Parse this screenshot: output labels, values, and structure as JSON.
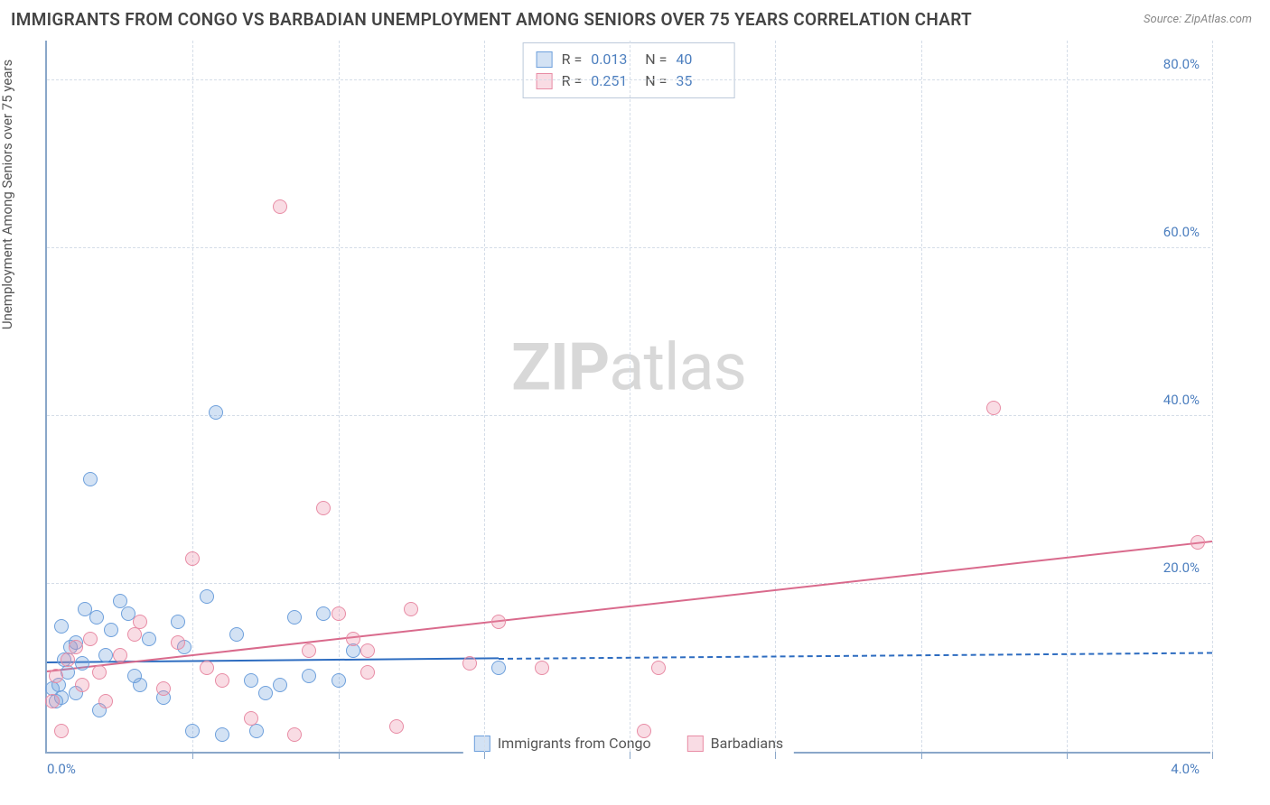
{
  "title": "IMMIGRANTS FROM CONGO VS BARBADIAN UNEMPLOYMENT AMONG SENIORS OVER 75 YEARS CORRELATION CHART",
  "source": "Source: ZipAtlas.com",
  "y_label": "Unemployment Among Seniors over 75 years",
  "watermark": {
    "bold": "ZIP",
    "rest": "atlas"
  },
  "chart": {
    "type": "scatter",
    "xlim": [
      0.0,
      4.0
    ],
    "ylim": [
      0.0,
      85.0
    ],
    "x_ticks": [
      0.0,
      0.5,
      1.0,
      1.5,
      2.0,
      2.5,
      3.0,
      3.5,
      4.0
    ],
    "x_tick_labels": [
      "0.0%",
      "",
      "",
      "",
      "",
      "",
      "",
      "",
      "4.0%"
    ],
    "y_ticks": [
      20.0,
      40.0,
      60.0,
      80.0
    ],
    "y_tick_labels": [
      "20.0%",
      "40.0%",
      "60.0%",
      "80.0%"
    ],
    "grid_color": "#d5dde8",
    "axis_color": "#8aa7c9",
    "label_color": "#4d7fbf",
    "background": "#ffffff",
    "marker_radius": 8,
    "marker_stroke_width": 1.5,
    "series": [
      {
        "name": "Immigrants from Congo",
        "color_fill": "rgba(110,160,220,0.30)",
        "color_stroke": "#6ea0dc",
        "r": "0.013",
        "n": "40",
        "trend": {
          "x1": 0.0,
          "y1": 10.5,
          "x2": 1.55,
          "y2": 11.0,
          "ext_x2": 4.0,
          "ext_y2": 11.7,
          "color": "#2d6cc0"
        },
        "points": [
          [
            0.02,
            7.5
          ],
          [
            0.03,
            6.0
          ],
          [
            0.04,
            8.0
          ],
          [
            0.05,
            15.0
          ],
          [
            0.05,
            6.5
          ],
          [
            0.06,
            11.0
          ],
          [
            0.07,
            9.5
          ],
          [
            0.08,
            12.5
          ],
          [
            0.1,
            13.0
          ],
          [
            0.1,
            7.0
          ],
          [
            0.12,
            10.5
          ],
          [
            0.13,
            17.0
          ],
          [
            0.15,
            32.5
          ],
          [
            0.17,
            16.0
          ],
          [
            0.18,
            5.0
          ],
          [
            0.2,
            11.5
          ],
          [
            0.22,
            14.5
          ],
          [
            0.25,
            18.0
          ],
          [
            0.28,
            16.5
          ],
          [
            0.3,
            9.0
          ],
          [
            0.32,
            8.0
          ],
          [
            0.35,
            13.5
          ],
          [
            0.4,
            6.5
          ],
          [
            0.45,
            15.5
          ],
          [
            0.47,
            12.5
          ],
          [
            0.5,
            2.5
          ],
          [
            0.55,
            18.5
          ],
          [
            0.58,
            40.5
          ],
          [
            0.6,
            2.0
          ],
          [
            0.65,
            14.0
          ],
          [
            0.7,
            8.5
          ],
          [
            0.72,
            2.5
          ],
          [
            0.75,
            7.0
          ],
          [
            0.8,
            8.0
          ],
          [
            0.85,
            16.0
          ],
          [
            0.9,
            9.0
          ],
          [
            0.95,
            16.5
          ],
          [
            1.0,
            8.5
          ],
          [
            1.05,
            12.0
          ],
          [
            1.55,
            10.0
          ]
        ]
      },
      {
        "name": "Barbadians",
        "color_fill": "rgba(235,140,165,0.30)",
        "color_stroke": "#e88ca5",
        "r": "0.251",
        "n": "35",
        "trend": {
          "x1": 0.0,
          "y1": 9.5,
          "x2": 4.0,
          "y2": 25.0,
          "color": "#d96a8c"
        },
        "points": [
          [
            0.02,
            6.0
          ],
          [
            0.03,
            9.0
          ],
          [
            0.05,
            2.5
          ],
          [
            0.07,
            11.0
          ],
          [
            0.1,
            12.5
          ],
          [
            0.12,
            8.0
          ],
          [
            0.15,
            13.5
          ],
          [
            0.18,
            9.5
          ],
          [
            0.2,
            6.0
          ],
          [
            0.25,
            11.5
          ],
          [
            0.3,
            14.0
          ],
          [
            0.32,
            15.5
          ],
          [
            0.4,
            7.5
          ],
          [
            0.45,
            13.0
          ],
          [
            0.5,
            23.0
          ],
          [
            0.55,
            10.0
          ],
          [
            0.6,
            8.5
          ],
          [
            0.7,
            4.0
          ],
          [
            0.8,
            65.0
          ],
          [
            0.85,
            2.0
          ],
          [
            0.9,
            12.0
          ],
          [
            0.95,
            29.0
          ],
          [
            1.0,
            16.5
          ],
          [
            1.05,
            13.5
          ],
          [
            1.1,
            12.0
          ],
          [
            1.1,
            9.5
          ],
          [
            1.2,
            3.0
          ],
          [
            1.25,
            17.0
          ],
          [
            1.45,
            10.5
          ],
          [
            1.55,
            15.5
          ],
          [
            1.7,
            10.0
          ],
          [
            2.05,
            2.5
          ],
          [
            2.1,
            10.0
          ],
          [
            3.25,
            41.0
          ],
          [
            3.95,
            25.0
          ]
        ]
      }
    ],
    "bottom_legend": [
      "Immigrants from Congo",
      "Barbadians"
    ]
  }
}
